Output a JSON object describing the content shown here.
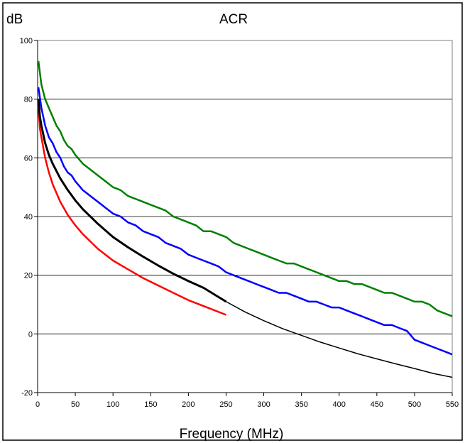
{
  "chart_data": {
    "type": "line",
    "title": "ACR",
    "ylabel": "dB",
    "xlabel": "Frequency (MHz)",
    "xlim": [
      0,
      550
    ],
    "ylim": [
      -20,
      100
    ],
    "xticks": [
      0,
      50,
      100,
      150,
      200,
      250,
      300,
      350,
      400,
      450,
      500,
      550
    ],
    "yticks": [
      -20,
      0,
      20,
      40,
      60,
      80,
      100
    ],
    "grid": "horizontal",
    "legend": "none",
    "colors": {
      "green": "#008000",
      "blue": "#0000ff",
      "black": "#000000",
      "red": "#ff0000",
      "grid": "#000000",
      "plot_border": "#808080"
    },
    "series": [
      {
        "color": "#008000",
        "x": [
          1,
          5,
          10,
          15,
          20,
          25,
          30,
          35,
          40,
          45,
          50,
          60,
          70,
          80,
          90,
          100,
          110,
          120,
          130,
          140,
          150,
          160,
          170,
          180,
          190,
          200,
          210,
          220,
          230,
          240,
          250,
          260,
          270,
          280,
          290,
          300,
          310,
          320,
          330,
          340,
          350,
          360,
          370,
          380,
          390,
          400,
          410,
          420,
          430,
          440,
          450,
          460,
          470,
          480,
          490,
          500,
          510,
          520,
          530,
          540,
          550
        ],
        "y": [
          93,
          85,
          80,
          77,
          74,
          71,
          69,
          66,
          64,
          63,
          61,
          58,
          56,
          54,
          52,
          50,
          49,
          47,
          46,
          45,
          44,
          43,
          42,
          40,
          39,
          38,
          37,
          35,
          35,
          34,
          33,
          31,
          30,
          29,
          28,
          27,
          26,
          25,
          24,
          24,
          23,
          22,
          21,
          20,
          19,
          18,
          18,
          17,
          17,
          16,
          15,
          14,
          14,
          13,
          12,
          11,
          11,
          10,
          8,
          7,
          6
        ]
      },
      {
        "color": "#0000ff",
        "x": [
          1,
          5,
          10,
          15,
          20,
          25,
          30,
          35,
          40,
          45,
          50,
          60,
          70,
          80,
          90,
          100,
          110,
          120,
          130,
          140,
          150,
          160,
          170,
          180,
          190,
          200,
          210,
          220,
          230,
          240,
          250,
          260,
          270,
          280,
          290,
          300,
          310,
          320,
          330,
          340,
          350,
          360,
          370,
          380,
          390,
          400,
          410,
          420,
          430,
          440,
          450,
          460,
          470,
          480,
          490,
          500,
          510,
          520,
          530,
          540,
          550
        ],
        "y": [
          84,
          77,
          71,
          67,
          65,
          62,
          60,
          57,
          55,
          54,
          52,
          49,
          47,
          45,
          43,
          41,
          40,
          38,
          37,
          35,
          34,
          33,
          31,
          30,
          29,
          27,
          26,
          25,
          24,
          23,
          21,
          20,
          19,
          18,
          17,
          16,
          15,
          14,
          14,
          13,
          12,
          11,
          11,
          10,
          9,
          9,
          8,
          7,
          6,
          5,
          4,
          3,
          3,
          2,
          1,
          -2,
          -3,
          -4,
          -5,
          -6,
          -7
        ]
      },
      {
        "color": "#000000",
        "x": [
          1,
          3,
          5,
          10,
          15,
          20,
          30,
          40,
          50,
          60,
          70,
          80,
          100,
          120,
          140,
          160,
          180,
          200,
          220,
          250,
          275,
          300,
          325,
          350,
          375,
          400,
          425,
          450,
          475,
          500,
          525,
          550
        ],
        "y": [
          80,
          74,
          71,
          65,
          61,
          58,
          53,
          49,
          45.5,
          42.5,
          40,
          37.5,
          33,
          29.5,
          26.3,
          23.3,
          20.5,
          18,
          15.7,
          11,
          7.5,
          4.5,
          1.8,
          -0.5,
          -2.8,
          -4.8,
          -6.8,
          -8.5,
          -10.2,
          -11.8,
          -13.5,
          -14.8
        ]
      },
      {
        "color": "#ff0000",
        "x": [
          1,
          3,
          5,
          10,
          15,
          20,
          30,
          40,
          50,
          60,
          70,
          80,
          100,
          120,
          140,
          160,
          180,
          200,
          220,
          250
        ],
        "y": [
          78,
          70,
          67,
          60,
          55,
          51,
          45,
          40.5,
          37,
          34,
          31.5,
          29,
          25,
          22,
          19,
          16.5,
          14,
          11.5,
          9.5,
          6.5
        ]
      }
    ]
  }
}
